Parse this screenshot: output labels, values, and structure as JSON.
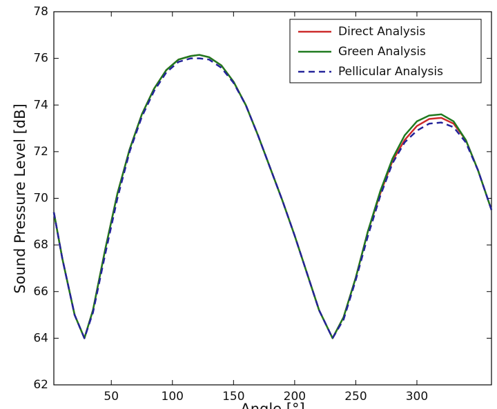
{
  "chart_data": {
    "type": "line",
    "x_label": "Angle [°]",
    "y_label": "Sound Pressure Level [dB]",
    "x": [
      3,
      10,
      20,
      28,
      35,
      45,
      55,
      65,
      75,
      85,
      95,
      105,
      115,
      122,
      130,
      140,
      150,
      160,
      170,
      180,
      190,
      200,
      210,
      220,
      231,
      240,
      250,
      260,
      270,
      280,
      290,
      300,
      310,
      320,
      330,
      340,
      350,
      361
    ],
    "series": [
      {
        "name": "Direct Analysis",
        "color": "#cc2a2a",
        "dash": false,
        "values": [
          69.4,
          67.4,
          65.0,
          64.0,
          65.2,
          67.8,
          70.2,
          72.1,
          73.6,
          74.7,
          75.5,
          75.95,
          76.1,
          76.15,
          76.05,
          75.7,
          75.0,
          74.0,
          72.7,
          71.3,
          69.9,
          68.4,
          66.8,
          65.2,
          64.0,
          64.9,
          66.6,
          68.6,
          70.2,
          71.6,
          72.5,
          73.1,
          73.4,
          73.45,
          73.2,
          72.5,
          71.2,
          69.5
        ]
      },
      {
        "name": "Green Analysis",
        "color": "#1f7a1f",
        "dash": false,
        "values": [
          69.4,
          67.4,
          65.0,
          64.0,
          65.2,
          67.8,
          70.2,
          72.1,
          73.6,
          74.7,
          75.5,
          75.95,
          76.1,
          76.15,
          76.05,
          75.7,
          75.0,
          74.0,
          72.7,
          71.3,
          69.9,
          68.4,
          66.8,
          65.2,
          64.0,
          64.9,
          66.6,
          68.6,
          70.3,
          71.7,
          72.7,
          73.3,
          73.55,
          73.6,
          73.3,
          72.5,
          71.2,
          69.5
        ]
      },
      {
        "name": "Pellicular Analysis",
        "color": "#23239a",
        "dash": true,
        "values": [
          69.4,
          67.4,
          65.0,
          64.0,
          65.1,
          67.6,
          70.0,
          72.0,
          73.5,
          74.6,
          75.4,
          75.85,
          76.0,
          76.0,
          75.95,
          75.6,
          74.95,
          74.0,
          72.7,
          71.3,
          69.9,
          68.4,
          66.8,
          65.2,
          64.0,
          64.8,
          66.5,
          68.4,
          70.1,
          71.5,
          72.4,
          72.9,
          73.2,
          73.25,
          73.05,
          72.4,
          71.2,
          69.5
        ]
      }
    ],
    "xlim": [
      3,
      361
    ],
    "ylim": [
      62,
      78
    ],
    "xticks": [
      50,
      100,
      150,
      200,
      250,
      300
    ],
    "yticks": [
      62,
      64,
      66,
      68,
      70,
      72,
      74,
      76,
      78
    ],
    "legend": "upper right"
  }
}
